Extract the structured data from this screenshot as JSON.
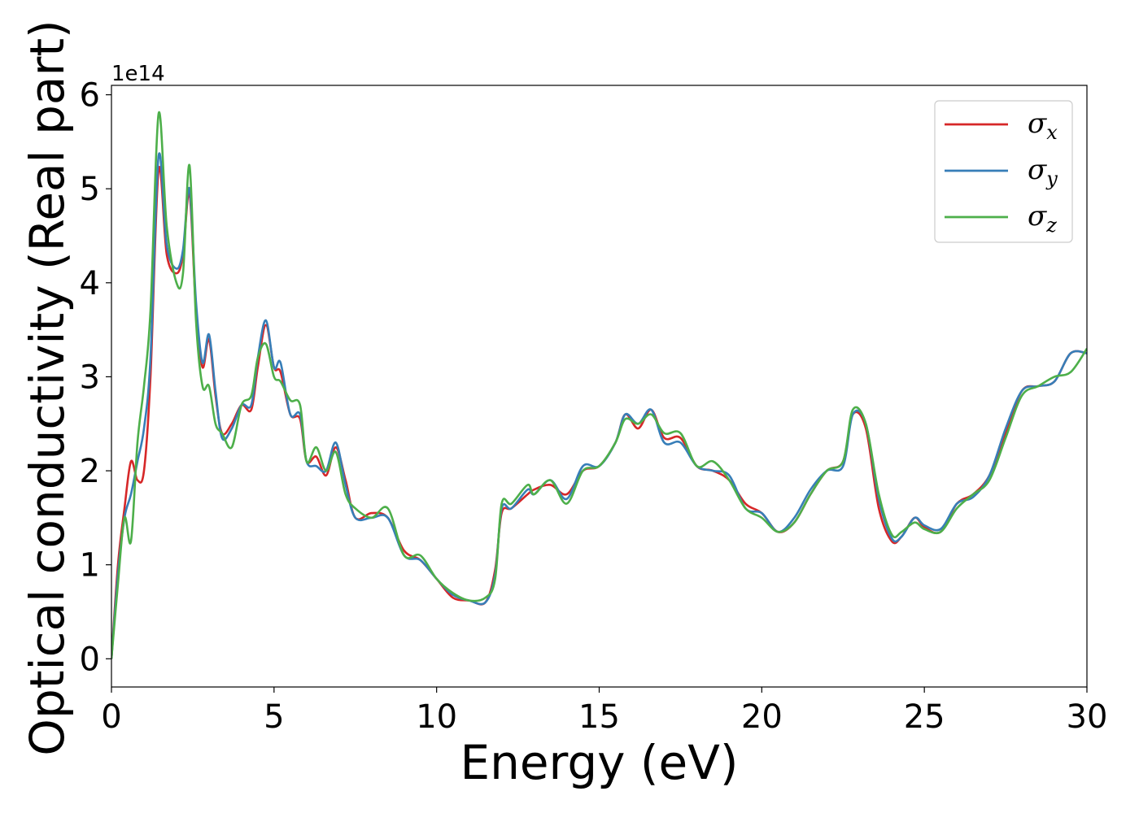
{
  "chart_data": {
    "type": "line",
    "xlabel": "Energy (eV)",
    "ylabel": "Optical conductivity (Real part)",
    "y_offset_label": "1e14",
    "xlim": [
      0,
      30
    ],
    "ylim": [
      -0.3,
      6.1
    ],
    "y_scale_factor": 100000000000000.0,
    "x_ticks": [
      0,
      5,
      10,
      15,
      20,
      25,
      30
    ],
    "x_tick_labels": [
      "0",
      "5",
      "10",
      "15",
      "20",
      "25",
      "30"
    ],
    "y_ticks": [
      0,
      1,
      2,
      3,
      4,
      5,
      6
    ],
    "y_tick_labels": [
      "0",
      "1",
      "2",
      "3",
      "4",
      "5",
      "6"
    ],
    "grid": false,
    "legend_position": "top-right",
    "series": [
      {
        "name": "σx",
        "legend_symbol": "σ",
        "legend_subscript": "x",
        "color": "#d62728",
        "x": [
          0,
          0.2,
          0.4,
          0.6,
          0.8,
          1.0,
          1.2,
          1.45,
          1.7,
          2.0,
          2.2,
          2.4,
          2.6,
          2.8,
          3.0,
          3.2,
          3.4,
          3.7,
          4.0,
          4.3,
          4.5,
          4.75,
          5.0,
          5.2,
          5.5,
          5.8,
          6.0,
          6.3,
          6.6,
          6.9,
          7.2,
          7.5,
          8.0,
          8.5,
          9.0,
          9.5,
          10.0,
          10.5,
          11.0,
          11.5,
          11.8,
          12.0,
          12.3,
          12.8,
          13.0,
          13.5,
          14.0,
          14.5,
          15.0,
          15.5,
          15.8,
          16.2,
          16.6,
          17.0,
          17.5,
          18.0,
          18.5,
          19.0,
          19.5,
          20.0,
          20.5,
          21.0,
          21.5,
          22.0,
          22.5,
          22.8,
          23.2,
          23.6,
          24.0,
          24.3,
          24.7,
          25.0,
          25.5,
          26.0,
          26.5,
          27.0,
          27.5,
          28.0,
          28.5,
          29.0,
          29.5,
          30.0
        ],
        "y": [
          0,
          1.0,
          1.6,
          2.1,
          1.9,
          2.0,
          3.0,
          5.2,
          4.3,
          4.1,
          4.3,
          4.95,
          3.7,
          3.1,
          3.4,
          2.8,
          2.4,
          2.5,
          2.7,
          2.65,
          3.1,
          3.55,
          3.1,
          3.05,
          2.6,
          2.55,
          2.1,
          2.15,
          1.95,
          2.25,
          1.9,
          1.5,
          1.55,
          1.5,
          1.15,
          1.05,
          0.85,
          0.65,
          0.62,
          0.6,
          0.95,
          1.55,
          1.6,
          1.75,
          1.8,
          1.85,
          1.75,
          2.0,
          2.05,
          2.3,
          2.6,
          2.45,
          2.65,
          2.35,
          2.35,
          2.05,
          2.0,
          1.9,
          1.65,
          1.55,
          1.35,
          1.45,
          1.75,
          2.0,
          2.1,
          2.6,
          2.45,
          1.6,
          1.25,
          1.3,
          1.5,
          1.4,
          1.35,
          1.65,
          1.75,
          1.95,
          2.4,
          2.85,
          2.9,
          2.95,
          3.25,
          3.25
        ]
      },
      {
        "name": "σy",
        "legend_symbol": "σ",
        "legend_subscript": "y",
        "color": "#377eb8",
        "x": [
          0,
          0.2,
          0.4,
          0.6,
          0.8,
          1.0,
          1.2,
          1.45,
          1.7,
          2.0,
          2.2,
          2.4,
          2.6,
          2.8,
          3.0,
          3.2,
          3.4,
          3.7,
          4.0,
          4.3,
          4.5,
          4.75,
          5.0,
          5.2,
          5.5,
          5.8,
          6.0,
          6.3,
          6.6,
          6.9,
          7.2,
          7.5,
          8.0,
          8.5,
          9.0,
          9.5,
          10.0,
          10.5,
          11.0,
          11.5,
          11.8,
          12.0,
          12.3,
          12.8,
          13.0,
          13.5,
          14.0,
          14.5,
          15.0,
          15.5,
          15.8,
          16.2,
          16.6,
          17.0,
          17.5,
          18.0,
          18.5,
          19.0,
          19.5,
          20.0,
          20.5,
          21.0,
          21.5,
          22.0,
          22.5,
          22.8,
          23.2,
          23.6,
          24.0,
          24.3,
          24.7,
          25.0,
          25.5,
          26.0,
          26.5,
          27.0,
          27.5,
          28.0,
          28.5,
          29.0,
          29.5,
          30.0
        ],
        "y": [
          0,
          0.9,
          1.5,
          1.75,
          2.1,
          2.45,
          3.2,
          5.35,
          4.4,
          4.15,
          4.35,
          5.0,
          3.8,
          3.15,
          3.45,
          2.85,
          2.35,
          2.45,
          2.7,
          2.7,
          3.2,
          3.6,
          3.1,
          3.15,
          2.6,
          2.6,
          2.1,
          2.05,
          2.0,
          2.3,
          1.85,
          1.5,
          1.5,
          1.5,
          1.1,
          1.05,
          0.85,
          0.68,
          0.62,
          0.6,
          0.9,
          1.6,
          1.6,
          1.8,
          1.75,
          1.9,
          1.7,
          2.05,
          2.05,
          2.3,
          2.6,
          2.5,
          2.65,
          2.3,
          2.3,
          2.05,
          2.0,
          1.95,
          1.6,
          1.55,
          1.35,
          1.5,
          1.8,
          2.0,
          2.05,
          2.6,
          2.5,
          1.7,
          1.28,
          1.3,
          1.5,
          1.42,
          1.38,
          1.65,
          1.72,
          1.95,
          2.45,
          2.85,
          2.9,
          2.95,
          3.25,
          3.25
        ]
      },
      {
        "name": "σz",
        "legend_symbol": "σ",
        "legend_subscript": "z",
        "color": "#4daf4a",
        "x": [
          0,
          0.2,
          0.4,
          0.6,
          0.8,
          1.0,
          1.2,
          1.45,
          1.7,
          2.0,
          2.2,
          2.4,
          2.6,
          2.8,
          3.0,
          3.2,
          3.4,
          3.7,
          4.0,
          4.3,
          4.5,
          4.75,
          5.0,
          5.2,
          5.5,
          5.8,
          6.0,
          6.3,
          6.6,
          6.9,
          7.2,
          7.5,
          8.0,
          8.5,
          9.0,
          9.5,
          10.0,
          10.5,
          11.0,
          11.5,
          11.8,
          12.0,
          12.3,
          12.8,
          13.0,
          13.5,
          14.0,
          14.5,
          15.0,
          15.5,
          15.8,
          16.2,
          16.6,
          17.0,
          17.5,
          18.0,
          18.5,
          19.0,
          19.5,
          20.0,
          20.5,
          21.0,
          21.5,
          22.0,
          22.5,
          22.8,
          23.2,
          23.6,
          24.0,
          24.3,
          24.7,
          25.0,
          25.5,
          26.0,
          26.5,
          27.0,
          27.5,
          28.0,
          28.5,
          29.0,
          29.5,
          30.0
        ],
        "y": [
          0,
          0.8,
          1.5,
          1.25,
          2.3,
          2.9,
          3.7,
          5.8,
          4.6,
          4.0,
          4.1,
          5.25,
          3.6,
          2.9,
          2.9,
          2.5,
          2.4,
          2.25,
          2.7,
          2.8,
          3.2,
          3.35,
          3.0,
          2.95,
          2.75,
          2.7,
          2.1,
          2.25,
          2.0,
          2.2,
          1.75,
          1.6,
          1.5,
          1.6,
          1.1,
          1.1,
          0.85,
          0.7,
          0.62,
          0.65,
          0.85,
          1.65,
          1.65,
          1.85,
          1.75,
          1.9,
          1.65,
          2.0,
          2.05,
          2.3,
          2.55,
          2.5,
          2.6,
          2.4,
          2.4,
          2.05,
          2.1,
          1.9,
          1.6,
          1.5,
          1.35,
          1.45,
          1.75,
          2.0,
          2.1,
          2.65,
          2.5,
          1.75,
          1.32,
          1.35,
          1.45,
          1.38,
          1.35,
          1.6,
          1.75,
          1.9,
          2.35,
          2.8,
          2.9,
          3.0,
          3.05,
          3.3
        ]
      }
    ]
  }
}
